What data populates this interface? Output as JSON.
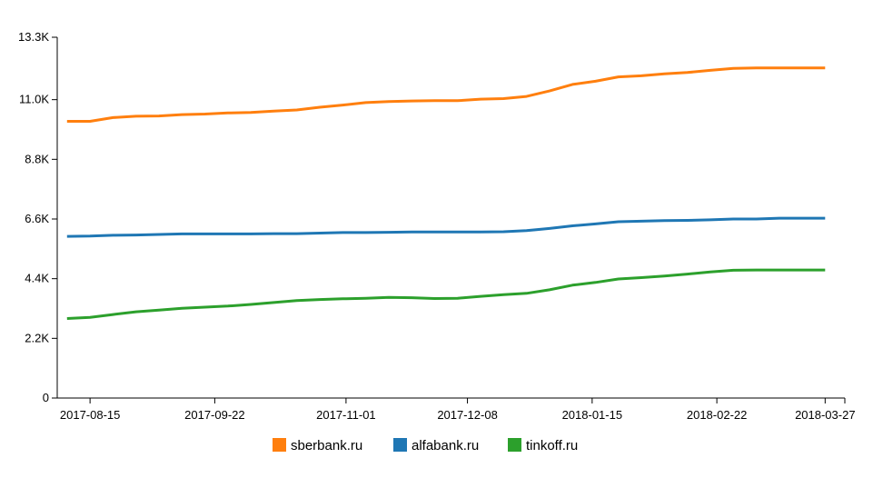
{
  "chart_data": {
    "type": "line",
    "x_tick_labels": [
      "2017-08-15",
      "2017-09-22",
      "2017-11-01",
      "2017-12-08",
      "2018-01-15",
      "2018-02-22",
      "2018-03-27"
    ],
    "y_tick_labels": [
      "0",
      "2.2K",
      "4.4K",
      "6.6K",
      "8.8K",
      "11.0K",
      "13.3K"
    ],
    "y_tick_values": [
      0,
      2200,
      4400,
      6600,
      8800,
      11000,
      13300
    ],
    "ylim": [
      0,
      13300
    ],
    "xlim": [
      "2017-08-05",
      "2018-04-02"
    ],
    "grid": false,
    "legend_position": "bottom",
    "x": [
      "2017-08-08",
      "2017-08-15",
      "2017-08-22",
      "2017-08-29",
      "2017-09-05",
      "2017-09-12",
      "2017-09-19",
      "2017-09-26",
      "2017-10-03",
      "2017-10-10",
      "2017-10-17",
      "2017-10-24",
      "2017-10-31",
      "2017-11-07",
      "2017-11-14",
      "2017-11-21",
      "2017-11-28",
      "2017-12-05",
      "2017-12-12",
      "2017-12-19",
      "2017-12-26",
      "2018-01-02",
      "2018-01-09",
      "2018-01-16",
      "2018-01-23",
      "2018-01-30",
      "2018-02-06",
      "2018-02-13",
      "2018-02-20",
      "2018-02-27",
      "2018-03-06",
      "2018-03-13",
      "2018-03-20",
      "2018-03-27"
    ],
    "series": [
      {
        "name": "sberbank.ru",
        "color": "#ff7f0e",
        "values": [
          10200,
          10200,
          10340,
          10390,
          10400,
          10450,
          10470,
          10510,
          10530,
          10580,
          10620,
          10720,
          10800,
          10890,
          10930,
          10950,
          10960,
          10960,
          11020,
          11040,
          11120,
          11320,
          11560,
          11680,
          11840,
          11880,
          11950,
          12000,
          12080,
          12150,
          12170,
          12170,
          12170,
          12170
        ]
      },
      {
        "name": "alfabank.ru",
        "color": "#1f77b4",
        "values": [
          5960,
          5970,
          6000,
          6010,
          6030,
          6050,
          6050,
          6050,
          6050,
          6060,
          6060,
          6080,
          6100,
          6100,
          6110,
          6120,
          6120,
          6120,
          6120,
          6130,
          6170,
          6250,
          6350,
          6420,
          6500,
          6520,
          6540,
          6550,
          6570,
          6600,
          6600,
          6630,
          6630,
          6630
        ]
      },
      {
        "name": "tinkoff.ru",
        "color": "#2ca02c",
        "values": [
          2930,
          2970,
          3080,
          3180,
          3240,
          3310,
          3350,
          3390,
          3450,
          3520,
          3590,
          3630,
          3660,
          3680,
          3710,
          3700,
          3670,
          3680,
          3750,
          3810,
          3860,
          3990,
          4160,
          4260,
          4390,
          4440,
          4500,
          4570,
          4650,
          4710,
          4720,
          4720,
          4720,
          4720
        ]
      }
    ]
  },
  "legend": {
    "items": [
      {
        "label": "sberbank.ru",
        "color": "#ff7f0e"
      },
      {
        "label": "alfabank.ru",
        "color": "#1f77b4"
      },
      {
        "label": "tinkoff.ru",
        "color": "#2ca02c"
      }
    ]
  }
}
